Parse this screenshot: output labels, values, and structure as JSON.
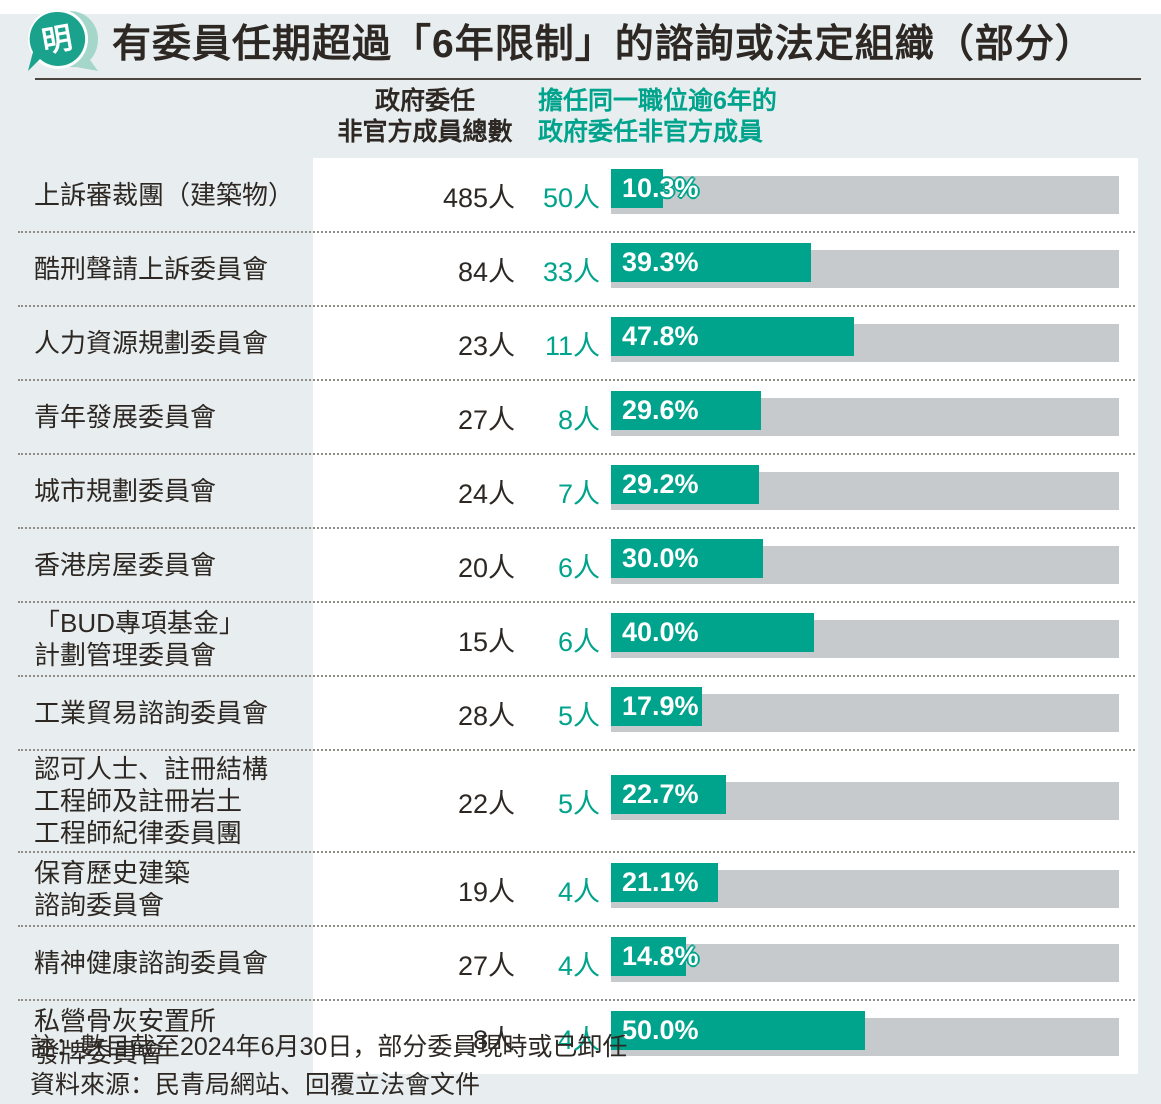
{
  "accent_color": "#00a38c",
  "bar_track_color": "#c6cacd",
  "background_color": "#e8edef",
  "header": {
    "logo_char": "明",
    "title": "有委員任期超過「6年限制」的諮詢或法定組織（部分）"
  },
  "columns": {
    "total_label": "政府委任\n非官方成員總數",
    "over6_label": "擔任同一職位逾6年的\n政府委任非官方成員"
  },
  "chart_data": {
    "type": "bar",
    "orientation": "horizontal",
    "xlim": [
      0,
      100
    ],
    "unit": "人",
    "value_format": "percent",
    "rows": [
      {
        "name": "上訴審裁團（建築物）",
        "total": "485人",
        "over6": "50人",
        "pct": 10.3,
        "pct_label": "10.3%"
      },
      {
        "name": "酷刑聲請上訴委員會",
        "total": "84人",
        "over6": "33人",
        "pct": 39.3,
        "pct_label": "39.3%"
      },
      {
        "name": "人力資源規劃委員會",
        "total": "23人",
        "over6": "11人",
        "pct": 47.8,
        "pct_label": "47.8%"
      },
      {
        "name": "青年發展委員會",
        "total": "27人",
        "over6": "8人",
        "pct": 29.6,
        "pct_label": "29.6%"
      },
      {
        "name": "城市規劃委員會",
        "total": "24人",
        "over6": "7人",
        "pct": 29.2,
        "pct_label": "29.2%"
      },
      {
        "name": "香港房屋委員會",
        "total": "20人",
        "over6": "6人",
        "pct": 30.0,
        "pct_label": "30.0%"
      },
      {
        "name": "「BUD專項基金」\n計劃管理委員會",
        "total": "15人",
        "over6": "6人",
        "pct": 40.0,
        "pct_label": "40.0%"
      },
      {
        "name": "工業貿易諮詢委員會",
        "total": "28人",
        "over6": "5人",
        "pct": 17.9,
        "pct_label": "17.9%"
      },
      {
        "name": "認可人士、註冊結構\n工程師及註冊岩土\n工程師紀律委員團",
        "total": "22人",
        "over6": "5人",
        "pct": 22.7,
        "pct_label": "22.7%"
      },
      {
        "name": "保育歷史建築\n諮詢委員會",
        "total": "19人",
        "over6": "4人",
        "pct": 21.1,
        "pct_label": "21.1%"
      },
      {
        "name": "精神健康諮詢委員會",
        "total": "27人",
        "over6": "4人",
        "pct": 14.8,
        "pct_label": "14.8%"
      },
      {
        "name": "私營骨灰安置所\n發牌委員會",
        "total": "8人",
        "over6": "4人",
        "pct": 50.0,
        "pct_label": "50.0%"
      }
    ]
  },
  "footer": {
    "note": "註：數目截至2024年6月30日，部分委員現時或已卸任",
    "source": "資料來源：民青局網站、回覆立法會文件"
  }
}
